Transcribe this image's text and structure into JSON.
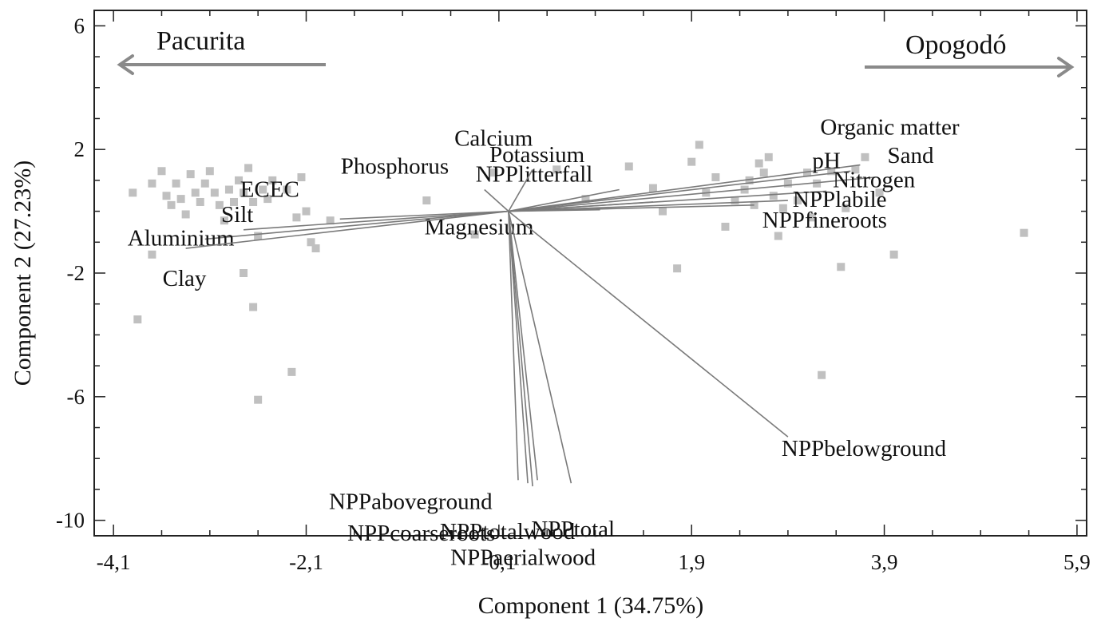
{
  "chart_data": {
    "type": "scatter",
    "subtype": "pca-biplot",
    "xlabel": "Component 1 (34.75%)",
    "ylabel": "Component 2 (27.23%)",
    "xlim": [
      -4.3,
      6.0
    ],
    "ylim": [
      -10.5,
      6.5
    ],
    "x_ticks": [
      -4.1,
      -2.1,
      -0.1,
      1.9,
      3.9,
      5.9
    ],
    "x_tick_labels": [
      "-4,1",
      "-2,1",
      "-0,1",
      "1,9",
      "3,9",
      "5,9"
    ],
    "y_ticks": [
      6,
      2,
      -2,
      -6,
      -10
    ],
    "y_tick_labels": [
      "6",
      "2",
      "-2",
      "-6",
      "-10"
    ],
    "grid": false,
    "marker_color": "#c0c0c0",
    "vector_color": "#7a7a7a",
    "arrow_color": "#8a8a8a",
    "group_arrows": [
      {
        "label": "Pacurita",
        "direction": "left"
      },
      {
        "label": "Opogodó",
        "direction": "right"
      }
    ],
    "points": [
      [
        -3.9,
        0.6
      ],
      [
        -3.7,
        0.9
      ],
      [
        -3.6,
        1.3
      ],
      [
        -3.55,
        0.5
      ],
      [
        -3.5,
        0.2
      ],
      [
        -3.45,
        0.9
      ],
      [
        -3.4,
        0.4
      ],
      [
        -3.35,
        -0.1
      ],
      [
        -3.3,
        1.2
      ],
      [
        -3.25,
        0.6
      ],
      [
        -3.2,
        0.3
      ],
      [
        -3.15,
        0.9
      ],
      [
        -3.1,
        1.3
      ],
      [
        -3.05,
        0.6
      ],
      [
        -3.0,
        0.2
      ],
      [
        -2.95,
        -0.3
      ],
      [
        -2.9,
        0.7
      ],
      [
        -2.85,
        0.3
      ],
      [
        -2.8,
        1.0
      ],
      [
        -2.75,
        0.6
      ],
      [
        -2.7,
        1.4
      ],
      [
        -2.65,
        0.3
      ],
      [
        -2.6,
        -0.8
      ],
      [
        -2.55,
        0.7
      ],
      [
        -2.5,
        0.4
      ],
      [
        -2.45,
        1.0
      ],
      [
        -2.3,
        0.7
      ],
      [
        -2.2,
        -0.2
      ],
      [
        -2.15,
        1.1
      ],
      [
        -2.1,
        0.0
      ],
      [
        -2.05,
        -1.0
      ],
      [
        -2.0,
        -1.2
      ],
      [
        -1.85,
        -0.3
      ],
      [
        -3.7,
        -1.4
      ],
      [
        -2.75,
        -2.0
      ],
      [
        -2.65,
        -3.1
      ],
      [
        -3.85,
        -3.5
      ],
      [
        -2.6,
        -6.1
      ],
      [
        -2.25,
        -5.2
      ],
      [
        -0.85,
        0.35
      ],
      [
        -0.35,
        -0.75
      ],
      [
        -0.15,
        1.25
      ],
      [
        0.5,
        1.35
      ],
      [
        0.8,
        0.4
      ],
      [
        1.25,
        1.45
      ],
      [
        1.5,
        0.75
      ],
      [
        1.6,
        0.0
      ],
      [
        1.75,
        -1.85
      ],
      [
        1.9,
        1.6
      ],
      [
        1.98,
        2.15
      ],
      [
        2.05,
        0.6
      ],
      [
        2.15,
        1.1
      ],
      [
        2.25,
        -0.5
      ],
      [
        2.35,
        0.35
      ],
      [
        2.45,
        0.7
      ],
      [
        2.5,
        1.0
      ],
      [
        2.55,
        0.2
      ],
      [
        2.6,
        1.55
      ],
      [
        2.65,
        1.25
      ],
      [
        2.7,
        1.75
      ],
      [
        2.75,
        0.5
      ],
      [
        2.8,
        -0.8
      ],
      [
        2.85,
        0.1
      ],
      [
        2.9,
        0.9
      ],
      [
        3.0,
        0.35
      ],
      [
        3.1,
        1.25
      ],
      [
        3.15,
        -0.2
      ],
      [
        3.2,
        0.9
      ],
      [
        3.25,
        -5.3
      ],
      [
        3.35,
        1.3
      ],
      [
        3.45,
        -1.8
      ],
      [
        3.5,
        0.1
      ],
      [
        3.6,
        1.35
      ],
      [
        3.7,
        1.75
      ],
      [
        3.85,
        0.6
      ],
      [
        4.0,
        -1.4
      ],
      [
        5.35,
        -0.7
      ]
    ],
    "vectors": [
      {
        "name": "Organic matter",
        "x": 3.65,
        "y": 1.5
      },
      {
        "name": "pH",
        "x": 3.55,
        "y": 1.3
      },
      {
        "name": "Sand",
        "x": 3.8,
        "y": 1.1
      },
      {
        "name": "Nitrogen",
        "x": 3.3,
        "y": 0.65
      },
      {
        "name": "NPPlabile",
        "x": 2.9,
        "y": 0.35
      },
      {
        "name": "NPPfineroots",
        "x": 2.55,
        "y": 0.2
      },
      {
        "name": "NPPlitterfall",
        "x": 1.15,
        "y": 0.7
      },
      {
        "name": "Potassium",
        "x": 1.5,
        "y": 0.3
      },
      {
        "name": "Magnesium",
        "x": 0.95,
        "y": 0.05
      },
      {
        "name": "Calcium",
        "x": 0.25,
        "y": 1.35
      },
      {
        "name": "Phosphorus",
        "x": -0.25,
        "y": 0.7
      },
      {
        "name": "ECEC",
        "x": -1.75,
        "y": -0.25
      },
      {
        "name": "Silt",
        "x": -2.75,
        "y": -0.6
      },
      {
        "name": "Aluminium",
        "x": -3.15,
        "y": -0.9
      },
      {
        "name": "Clay",
        "x": -3.35,
        "y": -1.2
      },
      {
        "name": "NPPaboveground",
        "x": 0.1,
        "y": -8.7
      },
      {
        "name": "NPPtotalwood",
        "x": 0.2,
        "y": -8.8
      },
      {
        "name": "NPPcoarseroots",
        "x": 0.25,
        "y": -8.9
      },
      {
        "name": "NPPaerialwood",
        "x": 0.3,
        "y": -8.7
      },
      {
        "name": "NPPtotal",
        "x": 0.65,
        "y": -8.8
      },
      {
        "name": "NPPbelowground",
        "x": 2.9,
        "y": -7.3
      }
    ]
  }
}
